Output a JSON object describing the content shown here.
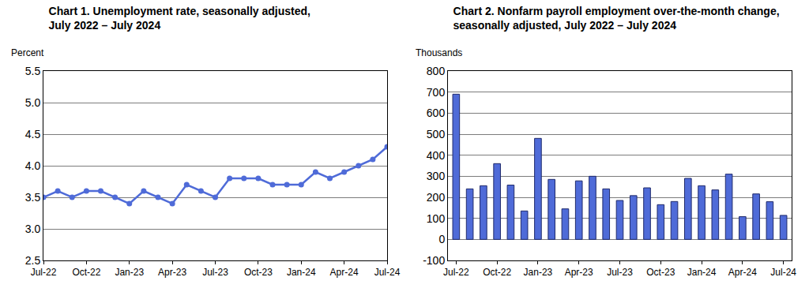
{
  "chart_data": [
    {
      "type": "line",
      "title": "Chart 1. Unemployment rate, seasonally adjusted,\nJuly 2022 – July 2024",
      "ylabel": "Percent",
      "categories": [
        "Jul-22",
        null,
        null,
        "Oct-22",
        null,
        null,
        "Jan-23",
        null,
        null,
        "Apr-23",
        null,
        null,
        "Jul-23",
        null,
        null,
        "Oct-23",
        null,
        null,
        "Jan-24",
        null,
        null,
        "Apr-24",
        null,
        null,
        "Jul-24"
      ],
      "values": [
        3.5,
        3.6,
        3.5,
        3.6,
        3.6,
        3.5,
        3.4,
        3.6,
        3.5,
        3.4,
        3.7,
        3.6,
        3.5,
        3.8,
        3.8,
        3.8,
        3.7,
        3.7,
        3.7,
        3.9,
        3.8,
        3.9,
        4.0,
        4.1,
        4.3
      ],
      "color": "#4f6bd8",
      "marker": "circle",
      "ylim": [
        2.5,
        5.5
      ],
      "yticks": [
        2.5,
        {
          "value": 3,
          "label": "3.0"
        },
        3.5,
        {
          "value": 4,
          "label": "4.0"
        },
        4.5,
        {
          "value": 5,
          "label": "5.0"
        },
        5.5
      ],
      "grid": true
    },
    {
      "type": "bar",
      "title": "Chart 2. Nonfarm payroll employment over-the-month change,\nseasonally adjusted, July 2022 – July 2024",
      "ylabel": "Thousands",
      "categories": [
        "Jul-22",
        null,
        null,
        "Oct-22",
        null,
        null,
        "Jan-23",
        null,
        null,
        "Apr-23",
        null,
        null,
        "Jul-23",
        null,
        null,
        "Oct-23",
        null,
        null,
        "Jan-24",
        null,
        null,
        "Apr-24",
        null,
        null,
        "Jul-24"
      ],
      "values": [
        690,
        240,
        255,
        360,
        258,
        135,
        480,
        285,
        145,
        278,
        300,
        240,
        185,
        208,
        245,
        165,
        180,
        290,
        255,
        235,
        310,
        108,
        216,
        179,
        114
      ],
      "color": "#4f6bd8",
      "ylim": [
        -100,
        800
      ],
      "yticks": [
        -100,
        0,
        100,
        200,
        300,
        400,
        500,
        600,
        700,
        800
      ],
      "grid": true
    }
  ]
}
